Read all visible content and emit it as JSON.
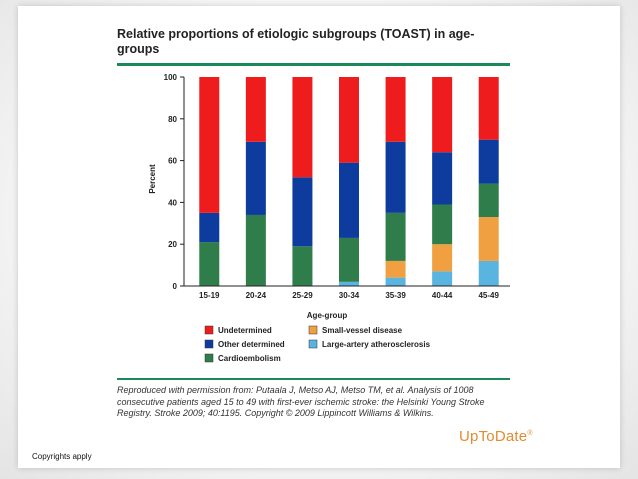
{
  "chart_data": {
    "type": "bar",
    "stacked": true,
    "title": "Relative proportions of etiologic subgroups (TOAST) in age-groups",
    "xlabel": "Age-group",
    "ylabel": "Percent",
    "ylim": [
      0,
      100
    ],
    "yticks": [
      "0",
      "20",
      "40",
      "60",
      "80",
      "100"
    ],
    "categories": [
      "15-19",
      "20-24",
      "25-29",
      "30-34",
      "35-39",
      "40-44",
      "45-49"
    ],
    "series": [
      {
        "name": "Large-artery atherosclerosis",
        "color": "#5ab4e0",
        "values": [
          0,
          0,
          0,
          2,
          4,
          7,
          12
        ]
      },
      {
        "name": "Small-vessel disease",
        "color": "#f0a040",
        "values": [
          0,
          0,
          0,
          0,
          8,
          13,
          21
        ]
      },
      {
        "name": "Cardioembolism",
        "color": "#2e7d4a",
        "values": [
          21,
          34,
          19,
          21,
          23,
          19,
          16
        ]
      },
      {
        "name": "Other determined",
        "color": "#0d3c9e",
        "values": [
          14,
          35,
          33,
          36,
          34,
          25,
          21
        ]
      },
      {
        "name": "Undetermined",
        "color": "#ee1c1c",
        "values": [
          65,
          31,
          48,
          41,
          31,
          36,
          30
        ]
      }
    ],
    "legend": [
      {
        "name": "Undetermined",
        "color": "#ee1c1c"
      },
      {
        "name": "Small-vessel disease",
        "color": "#f0a040"
      },
      {
        "name": "Other determined",
        "color": "#0d3c9e"
      },
      {
        "name": "Large-artery atherosclerosis",
        "color": "#5ab4e0"
      },
      {
        "name": "Cardioembolism",
        "color": "#2e7d4a"
      }
    ],
    "grid": false,
    "legend_position": "bottom"
  },
  "source_note": "Reproduced with permission from: Putaala J, Metso AJ, Metso TM, et al. Analysis of 1008 consecutive patients aged 15 to 49 with first-ever ischemic stroke: the Helsinki Young Stroke Registry. Stroke 2009; 40:1195. Copyright © 2009 Lippincott Williams & Wilkins.",
  "logo_text": "UpToDate",
  "logo_mark": "®",
  "copyright_text": "Copyrights apply"
}
